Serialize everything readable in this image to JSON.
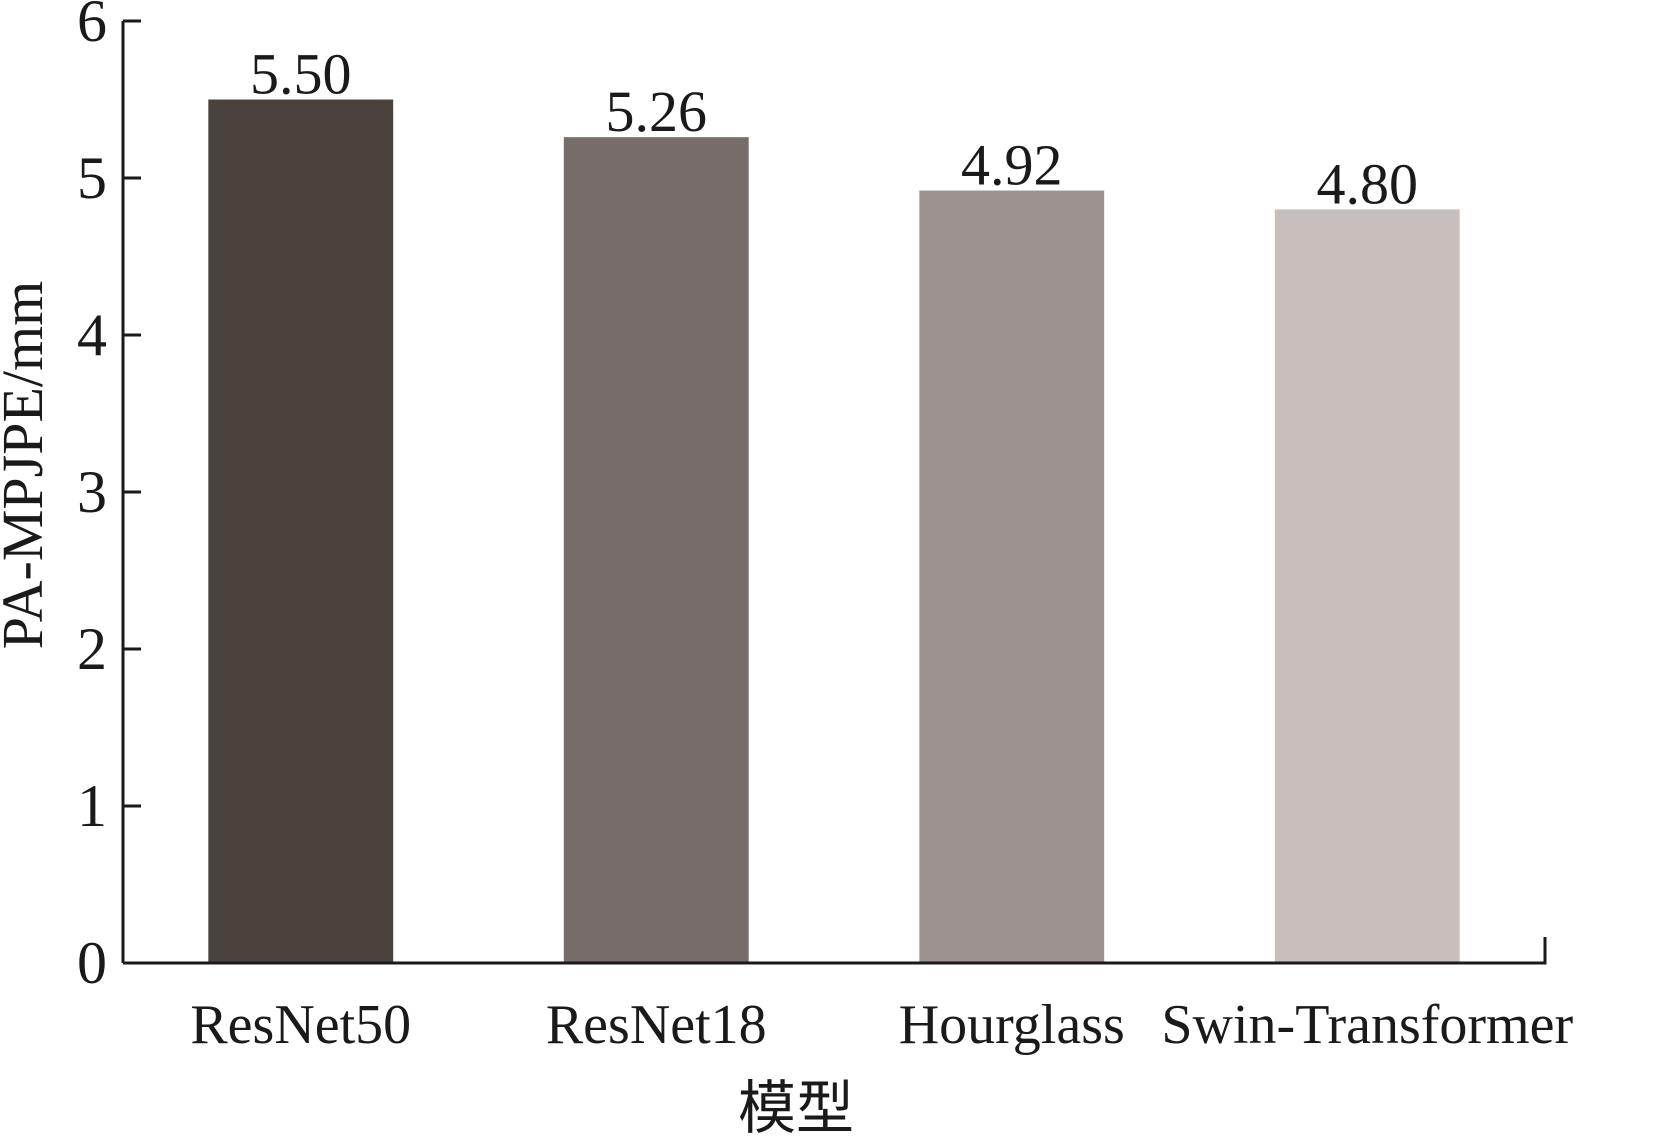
{
  "chart_data": {
    "type": "bar",
    "categories": [
      "ResNet50",
      "ResNet18",
      "Hourglass",
      "Swin-Transformer"
    ],
    "values": [
      5.5,
      5.26,
      4.92,
      4.8
    ],
    "value_labels": [
      "5.50",
      "5.26",
      "4.92",
      "4.80"
    ],
    "colors": [
      "#4a423c",
      "#766c69",
      "#9c9390",
      "#c6bfbc"
    ],
    "xlabel": "模型",
    "ylabel": "PA-MPJPE/mm",
    "ylim": [
      0,
      6
    ],
    "yticks": [
      "0",
      "1",
      "2",
      "3",
      "4",
      "5",
      "6"
    ],
    "grid": false,
    "legend": "none"
  }
}
